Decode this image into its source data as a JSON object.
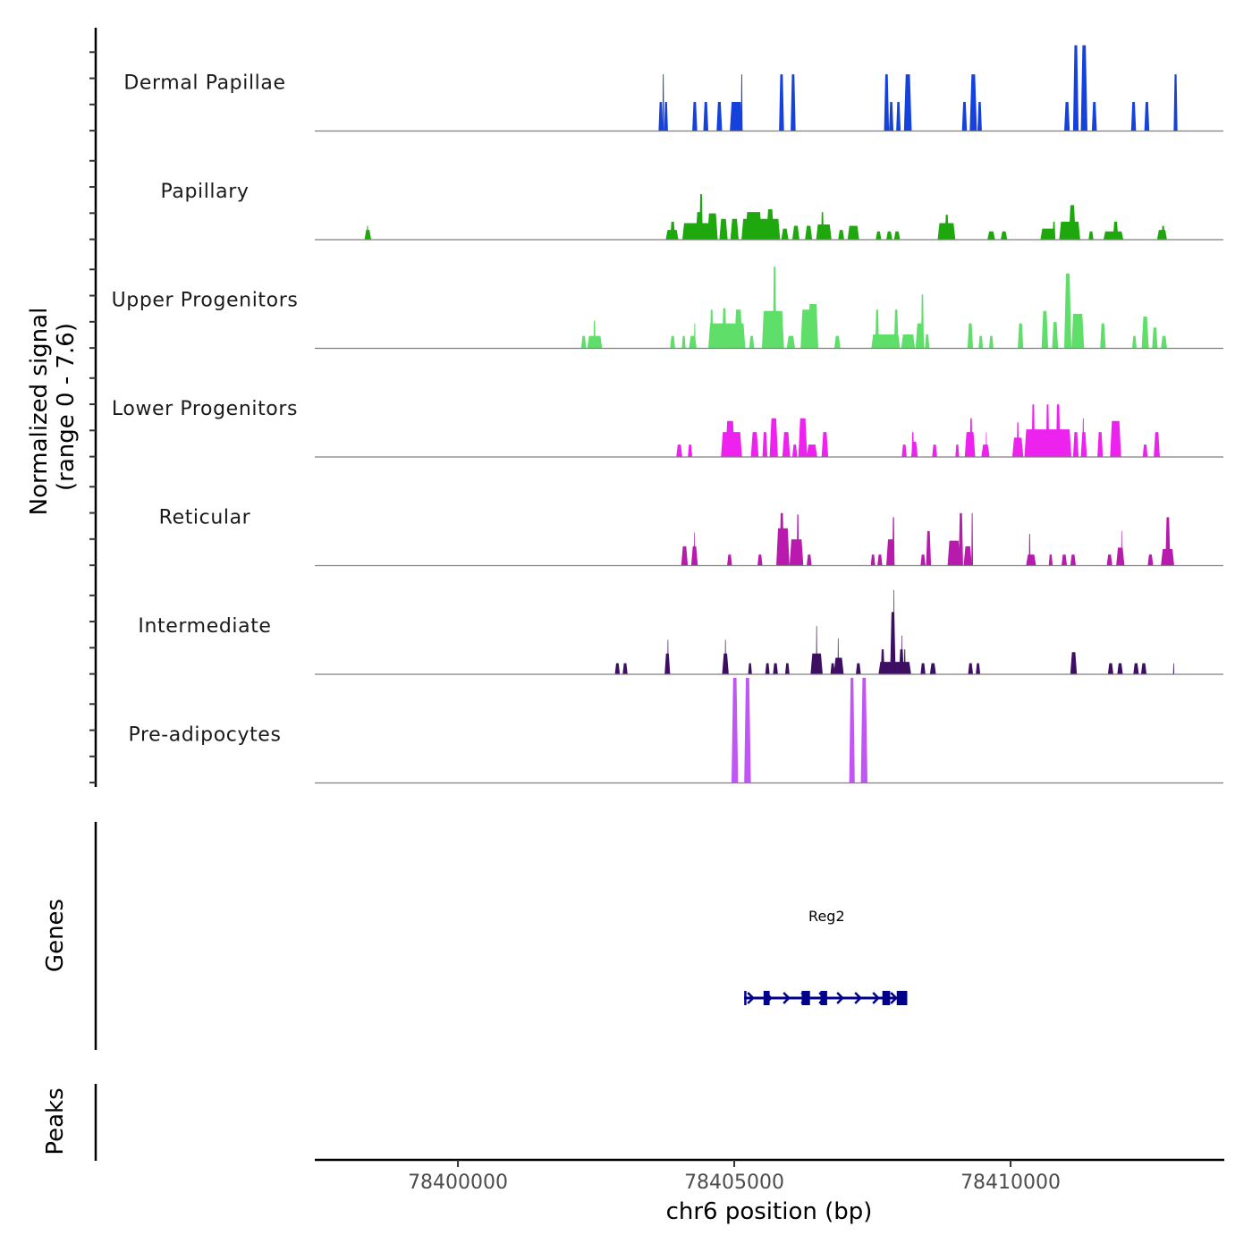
{
  "chart_data": {
    "type": "area",
    "title": "",
    "xlabel": "chr6 position (bp)",
    "ylabel_line1": "Normalized signal",
    "ylabel_line2": "(range 0 - 7.6)",
    "ylim": [
      0,
      7.6
    ],
    "xlim": [
      78397410,
      78413850
    ],
    "x_ticks": [
      78400000,
      78405000,
      78410000
    ],
    "x_tick_labels": [
      "78400000",
      "78405000",
      "78410000"
    ],
    "genes_panel_label": "Genes",
    "peaks_panel_label": "Peaks",
    "genes": [
      {
        "name": "Reg2",
        "strand": "+",
        "start": 78405180,
        "end": 78408130,
        "color": "#00008b",
        "exons": [
          [
            78405180,
            78405220
          ],
          [
            78405530,
            78405640
          ],
          [
            78406220,
            78406370
          ],
          [
            78406560,
            78406680
          ],
          [
            78407680,
            78407820
          ],
          [
            78407940,
            78408130
          ]
        ]
      }
    ],
    "series": [
      {
        "name": "Dermal Papillae",
        "color": "#1541dc",
        "peaks": [
          [
            78403630,
            78403710,
            2.1
          ],
          [
            78403700,
            78403730,
            4.1
          ],
          [
            78403730,
            78403800,
            2.1
          ],
          [
            78404240,
            78404330,
            2.1
          ],
          [
            78404440,
            78404530,
            2.1
          ],
          [
            78404680,
            78404780,
            2.1
          ],
          [
            78404920,
            78405150,
            2.1
          ],
          [
            78405120,
            78405150,
            4.1
          ],
          [
            78405810,
            78405900,
            4.1
          ],
          [
            78406020,
            78406110,
            4.1
          ],
          [
            78407710,
            78407800,
            4.1
          ],
          [
            78407800,
            78407880,
            2.1
          ],
          [
            78407930,
            78408010,
            2.1
          ],
          [
            78408070,
            78408210,
            4.1
          ],
          [
            78409120,
            78409210,
            2.1
          ],
          [
            78409260,
            78409390,
            4.1
          ],
          [
            78409400,
            78409480,
            2.1
          ],
          [
            78410970,
            78411070,
            2.1
          ],
          [
            78411130,
            78411230,
            6.2
          ],
          [
            78411270,
            78411390,
            6.2
          ],
          [
            78411470,
            78411560,
            2.1
          ],
          [
            78412180,
            78412270,
            2.1
          ],
          [
            78412420,
            78412510,
            2.1
          ],
          [
            78412950,
            78413020,
            4.1
          ]
        ]
      },
      {
        "name": "Papillary",
        "color": "#1fa80e",
        "peaks": [
          [
            78398310,
            78398430,
            0.7
          ],
          [
            78398350,
            78398380,
            1.0
          ],
          [
            78403760,
            78403990,
            0.7
          ],
          [
            78403840,
            78403930,
            1.3
          ],
          [
            78404060,
            78404700,
            1.2
          ],
          [
            78404300,
            78404420,
            2.0
          ],
          [
            78404370,
            78404430,
            3.3
          ],
          [
            78404510,
            78404700,
            1.9
          ],
          [
            78404730,
            78404880,
            1.5
          ],
          [
            78404930,
            78405080,
            1.5
          ],
          [
            78405130,
            78405830,
            1.5
          ],
          [
            78405200,
            78405500,
            2.0
          ],
          [
            78405580,
            78405720,
            2.2
          ],
          [
            78405850,
            78405980,
            0.8
          ],
          [
            78406050,
            78406180,
            1.0
          ],
          [
            78406280,
            78406410,
            1.0
          ],
          [
            78406480,
            78406760,
            1.1
          ],
          [
            78406570,
            78406620,
            2.0
          ],
          [
            78406880,
            78406990,
            0.7
          ],
          [
            78407050,
            78407260,
            1.0
          ],
          [
            78407560,
            78407660,
            0.6
          ],
          [
            78407750,
            78407860,
            0.6
          ],
          [
            78407890,
            78408000,
            0.6
          ],
          [
            78408680,
            78409000,
            1.2
          ],
          [
            78408810,
            78408880,
            1.8
          ],
          [
            78409580,
            78409720,
            0.6
          ],
          [
            78409820,
            78409940,
            0.6
          ],
          [
            78410540,
            78410810,
            0.8
          ],
          [
            78410760,
            78410810,
            1.3
          ],
          [
            78410880,
            78411260,
            1.3
          ],
          [
            78411050,
            78411180,
            2.5
          ],
          [
            78411410,
            78411500,
            0.6
          ],
          [
            78411680,
            78412040,
            0.6
          ],
          [
            78411850,
            78411950,
            1.3
          ],
          [
            78412650,
            78412830,
            0.7
          ],
          [
            78412730,
            78412790,
            1.0
          ]
        ]
      },
      {
        "name": "Upper Progenitors",
        "color": "#5fdf6a",
        "peaks": [
          [
            78402230,
            78402320,
            0.9
          ],
          [
            78402340,
            78402610,
            0.9
          ],
          [
            78402450,
            78402490,
            2.0
          ],
          [
            78403840,
            78403930,
            0.9
          ],
          [
            78404050,
            78404120,
            0.9
          ],
          [
            78404180,
            78404320,
            0.9
          ],
          [
            78404270,
            78404300,
            1.8
          ],
          [
            78404530,
            78405200,
            1.8
          ],
          [
            78404560,
            78404620,
            2.8
          ],
          [
            78404780,
            78404860,
            2.9
          ],
          [
            78405000,
            78405150,
            2.8
          ],
          [
            78405270,
            78405360,
            0.9
          ],
          [
            78405500,
            78405900,
            2.7
          ],
          [
            78405700,
            78405760,
            5.9
          ],
          [
            78405950,
            78406100,
            0.9
          ],
          [
            78406200,
            78406400,
            2.8
          ],
          [
            78406330,
            78406520,
            3.2
          ],
          [
            78406810,
            78406920,
            0.9
          ],
          [
            78407480,
            78408000,
            1.0
          ],
          [
            78407550,
            78407620,
            2.8
          ],
          [
            78407890,
            78407970,
            2.8
          ],
          [
            78408020,
            78408270,
            1.0
          ],
          [
            78408280,
            78408440,
            1.8
          ],
          [
            78408380,
            78408430,
            3.9
          ],
          [
            78408450,
            78408530,
            1.0
          ],
          [
            78409220,
            78409320,
            1.8
          ],
          [
            78409420,
            78409500,
            0.9
          ],
          [
            78409610,
            78409690,
            0.9
          ],
          [
            78410130,
            78410230,
            1.8
          ],
          [
            78410560,
            78410680,
            2.7
          ],
          [
            78410750,
            78410860,
            1.9
          ],
          [
            78410970,
            78411100,
            5.4
          ],
          [
            78411100,
            78411330,
            2.5
          ],
          [
            78411620,
            78411720,
            1.8
          ],
          [
            78412200,
            78412280,
            0.9
          ],
          [
            78412370,
            78412500,
            2.3
          ],
          [
            78412560,
            78412660,
            1.5
          ],
          [
            78412720,
            78412830,
            0.9
          ]
        ]
      },
      {
        "name": "Lower Progenitors",
        "color": "#ee22ee",
        "peaks": [
          [
            78403950,
            78404060,
            0.9
          ],
          [
            78404160,
            78404240,
            0.9
          ],
          [
            78404760,
            78405140,
            1.8
          ],
          [
            78404840,
            78405010,
            2.6
          ],
          [
            78405300,
            78405440,
            1.8
          ],
          [
            78405510,
            78405600,
            1.8
          ],
          [
            78405640,
            78405790,
            2.8
          ],
          [
            78405870,
            78406010,
            1.8
          ],
          [
            78406050,
            78406140,
            0.9
          ],
          [
            78406160,
            78406320,
            2.8
          ],
          [
            78406310,
            78406500,
            0.9
          ],
          [
            78406580,
            78406700,
            1.8
          ],
          [
            78408030,
            78408120,
            0.9
          ],
          [
            78408200,
            78408320,
            1.1
          ],
          [
            78408210,
            78408250,
            1.8
          ],
          [
            78408580,
            78408670,
            0.9
          ],
          [
            78409000,
            78409070,
            0.9
          ],
          [
            78409170,
            78409360,
            1.8
          ],
          [
            78409260,
            78409310,
            2.8
          ],
          [
            78409470,
            78409620,
            0.9
          ],
          [
            78409550,
            78409570,
            1.8
          ],
          [
            78410030,
            78410230,
            1.4
          ],
          [
            78410110,
            78410150,
            2.5
          ],
          [
            78410250,
            78411100,
            2.0
          ],
          [
            78410380,
            78410440,
            3.8
          ],
          [
            78410640,
            78410700,
            3.8
          ],
          [
            78410820,
            78410900,
            3.8
          ],
          [
            78411130,
            78411230,
            1.8
          ],
          [
            78411270,
            78411380,
            1.8
          ],
          [
            78411300,
            78411330,
            2.8
          ],
          [
            78411570,
            78411670,
            1.8
          ],
          [
            78411800,
            78412000,
            2.6
          ],
          [
            78412390,
            78412480,
            0.9
          ],
          [
            78412590,
            78412700,
            1.8
          ]
        ]
      },
      {
        "name": "Reticular",
        "color": "#b81aad",
        "peaks": [
          [
            78404040,
            78404160,
            1.4
          ],
          [
            78404220,
            78404340,
            1.4
          ],
          [
            78404270,
            78404290,
            2.4
          ],
          [
            78404870,
            78404960,
            0.8
          ],
          [
            78405420,
            78405510,
            0.8
          ],
          [
            78405760,
            78406000,
            2.7
          ],
          [
            78405820,
            78405900,
            3.8
          ],
          [
            78406000,
            78406250,
            1.9
          ],
          [
            78406130,
            78406170,
            3.7
          ],
          [
            78406310,
            78406400,
            0.8
          ],
          [
            78407470,
            78407550,
            0.8
          ],
          [
            78407590,
            78407680,
            0.8
          ],
          [
            78407750,
            78407900,
            1.9
          ],
          [
            78407860,
            78407900,
            3.5
          ],
          [
            78408370,
            78408460,
            0.8
          ],
          [
            78408470,
            78408560,
            2.5
          ],
          [
            78408860,
            78409090,
            1.8
          ],
          [
            78409060,
            78409140,
            3.8
          ],
          [
            78409150,
            78409300,
            1.4
          ],
          [
            78409290,
            78409320,
            3.8
          ],
          [
            78410280,
            78410460,
            0.8
          ],
          [
            78410330,
            78410360,
            2.3
          ],
          [
            78410690,
            78410760,
            0.8
          ],
          [
            78410920,
            78411020,
            0.8
          ],
          [
            78411080,
            78411180,
            0.8
          ],
          [
            78411740,
            78411840,
            0.8
          ],
          [
            78411910,
            78412060,
            1.3
          ],
          [
            78412000,
            78412020,
            2.5
          ],
          [
            78412480,
            78412580,
            0.8
          ],
          [
            78412720,
            78412960,
            1.2
          ],
          [
            78412800,
            78412890,
            3.5
          ]
        ]
      },
      {
        "name": "Intermediate",
        "color": "#3d0f63",
        "peaks": [
          [
            78402840,
            78402930,
            0.8
          ],
          [
            78402980,
            78403070,
            0.8
          ],
          [
            78403740,
            78403840,
            1.5
          ],
          [
            78403790,
            78403810,
            2.5
          ],
          [
            78404780,
            78404900,
            1.5
          ],
          [
            78404830,
            78404850,
            2.5
          ],
          [
            78405250,
            78405320,
            0.8
          ],
          [
            78405560,
            78405640,
            0.8
          ],
          [
            78405700,
            78405790,
            0.8
          ],
          [
            78405920,
            78406000,
            0.8
          ],
          [
            78406380,
            78406600,
            1.5
          ],
          [
            78406480,
            78406500,
            3.5
          ],
          [
            78406740,
            78406820,
            0.8
          ],
          [
            78406800,
            78406980,
            1.2
          ],
          [
            78406870,
            78406890,
            2.6
          ],
          [
            78407200,
            78407290,
            0.8
          ],
          [
            78407610,
            78408200,
            0.9
          ],
          [
            78407650,
            78407720,
            1.8
          ],
          [
            78407820,
            78407920,
            4.5
          ],
          [
            78407880,
            78407900,
            6.1
          ],
          [
            78407980,
            78408070,
            1.8
          ],
          [
            78408020,
            78408040,
            2.8
          ],
          [
            78408070,
            78408100,
            1.8
          ],
          [
            78408370,
            78408460,
            0.8
          ],
          [
            78408540,
            78408650,
            0.8
          ],
          [
            78409230,
            78409320,
            0.8
          ],
          [
            78409370,
            78409450,
            0.8
          ],
          [
            78411080,
            78411200,
            1.6
          ],
          [
            78411760,
            78411860,
            0.8
          ],
          [
            78411930,
            78412030,
            0.8
          ],
          [
            78412220,
            78412320,
            0.8
          ],
          [
            78412360,
            78412460,
            0.8
          ],
          [
            78412940,
            78412960,
            0.8
          ]
        ]
      },
      {
        "name": "Pre-adipocytes",
        "color": "#c057f5",
        "peaks": [
          [
            78404950,
            78405070,
            7.6
          ],
          [
            78405180,
            78405300,
            7.6
          ],
          [
            78407080,
            78407180,
            7.6
          ],
          [
            78407290,
            78407410,
            7.6
          ]
        ]
      }
    ]
  }
}
